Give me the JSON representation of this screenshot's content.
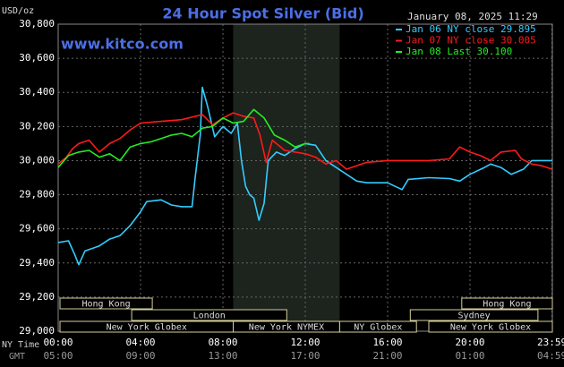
{
  "chart_data": {
    "type": "line",
    "title": "24 Hour Spot Silver (Bid)",
    "timestamp": "January 08, 2025 11:29",
    "y_label": "USD/oz",
    "watermark": "www.kitco.com",
    "x_row_labels": [
      "NY Time",
      "GMT"
    ],
    "xlim": [
      0,
      24
    ],
    "ylim": [
      29000,
      30800
    ],
    "xticks": [
      {
        "value": 0,
        "label": "00:00"
      },
      {
        "value": 4,
        "label": "04:00"
      },
      {
        "value": 8,
        "label": "08:00"
      },
      {
        "value": 12,
        "label": "12:00"
      },
      {
        "value": 16,
        "label": "16:00"
      },
      {
        "value": 20,
        "label": "20:00"
      },
      {
        "value": 23.98,
        "label": "23:59"
      }
    ],
    "gmt_labels": [
      "05:00",
      "09:00",
      "13:00",
      "17:00",
      "21:00",
      "01:00",
      "04:59"
    ],
    "yticks": [
      {
        "value": 29000,
        "label": "29,000"
      },
      {
        "value": 29200,
        "label": "29,200"
      },
      {
        "value": 29400,
        "label": "29,400"
      },
      {
        "value": 29600,
        "label": "29,600"
      },
      {
        "value": 29800,
        "label": "29,800"
      },
      {
        "value": 30000,
        "label": "30,000"
      },
      {
        "value": 30200,
        "label": "30,200"
      },
      {
        "value": 30400,
        "label": "30,400"
      },
      {
        "value": 30600,
        "label": "30,600"
      },
      {
        "value": 30800,
        "label": "30,800"
      }
    ],
    "grid": true,
    "shaded_session": "New York NYMEX",
    "sessions": [
      [
        {
          "name": "Hong Kong",
          "start": 0,
          "end": 4.57
        },
        {
          "name": "Hong Kong",
          "start": 19.6,
          "end": 24
        }
      ],
      [
        {
          "name": "London",
          "start": 3.57,
          "end": 11.1
        },
        {
          "name": "Sydney",
          "start": 17.1,
          "end": 23.3
        }
      ],
      [
        {
          "name": "New York Globex",
          "start": 0,
          "end": 8.5
        },
        {
          "name": "New York NYMEX",
          "start": 8.5,
          "end": 13.67
        },
        {
          "name": "NY Globex",
          "start": 13.67,
          "end": 17.4
        },
        {
          "name": "New York Globex",
          "start": 18.0,
          "end": 24
        }
      ]
    ],
    "series": [
      {
        "name": "Jan 06 NY close 29.895",
        "color": "#33ccff",
        "x": [
          0,
          0.5,
          0.8,
          1.0,
          1.3,
          2.0,
          2.5,
          3.0,
          3.5,
          4.0,
          4.3,
          5.0,
          5.5,
          6.0,
          6.5,
          6.65,
          6.8,
          6.9,
          7.0,
          7.25,
          7.6,
          8.0,
          8.4,
          8.7,
          8.9,
          9.1,
          9.3,
          9.5,
          9.75,
          10.0,
          10.2,
          10.6,
          11.0,
          11.5,
          12.0,
          12.5,
          13.0,
          14.0,
          14.5,
          15.0,
          16.0,
          16.7,
          17.0,
          18.0,
          19.0,
          19.5,
          20.0,
          20.7,
          21.0,
          21.5,
          22.0,
          22.6,
          23.0,
          23.98
        ],
        "values": [
          29520,
          29530,
          29450,
          29390,
          29470,
          29500,
          29540,
          29560,
          29620,
          29700,
          29760,
          29770,
          29740,
          29730,
          29730,
          29900,
          30050,
          30150,
          30430,
          30320,
          30140,
          30200,
          30160,
          30220,
          30000,
          29850,
          29800,
          29780,
          29650,
          29750,
          30000,
          30050,
          30030,
          30070,
          30100,
          30090,
          30000,
          29920,
          29880,
          29870,
          29870,
          29830,
          29890,
          29900,
          29895,
          29880,
          29920,
          29960,
          29980,
          29960,
          29920,
          29950,
          30000,
          30000
        ]
      },
      {
        "name": "Jan 07 NY close 30.005",
        "color": "#ff1a1a",
        "x": [
          0,
          0.4,
          0.7,
          1.0,
          1.5,
          2.0,
          2.5,
          3.0,
          3.5,
          4.0,
          5.0,
          6.0,
          7.0,
          7.5,
          8.0,
          8.5,
          9.0,
          9.5,
          9.8,
          10.1,
          10.4,
          11.0,
          12.0,
          12.5,
          13.0,
          13.5,
          14.0,
          15.0,
          16.0,
          17.0,
          18.0,
          19.0,
          19.5,
          20.0,
          20.5,
          21.0,
          21.5,
          22.2,
          22.5,
          23.0,
          23.5,
          23.98
        ],
        "values": [
          29980,
          30020,
          30070,
          30100,
          30120,
          30050,
          30100,
          30130,
          30180,
          30220,
          30230,
          30240,
          30270,
          30210,
          30250,
          30280,
          30260,
          30250,
          30150,
          29990,
          30120,
          30060,
          30040,
          30020,
          29980,
          30000,
          29950,
          29990,
          30000,
          30000,
          30000,
          30010,
          30080,
          30050,
          30030,
          30000,
          30050,
          30060,
          30010,
          29980,
          29970,
          29950
        ]
      },
      {
        "name": "Jan 08 Last 30.100",
        "color": "#22ee22",
        "x": [
          0,
          0.5,
          1.0,
          1.5,
          2.0,
          2.5,
          3.0,
          3.5,
          4.0,
          4.5,
          5.0,
          5.5,
          6.0,
          6.5,
          7.0,
          7.5,
          8.0,
          8.5,
          9.0,
          9.5,
          10.0,
          10.5,
          11.0,
          11.5,
          12.0,
          12.2
        ],
        "values": [
          29960,
          30030,
          30050,
          30060,
          30020,
          30040,
          30000,
          30080,
          30100,
          30110,
          30130,
          30150,
          30160,
          30140,
          30190,
          30200,
          30250,
          30220,
          30230,
          30300,
          30250,
          30150,
          30120,
          30080,
          30100,
          30100
        ]
      }
    ]
  }
}
